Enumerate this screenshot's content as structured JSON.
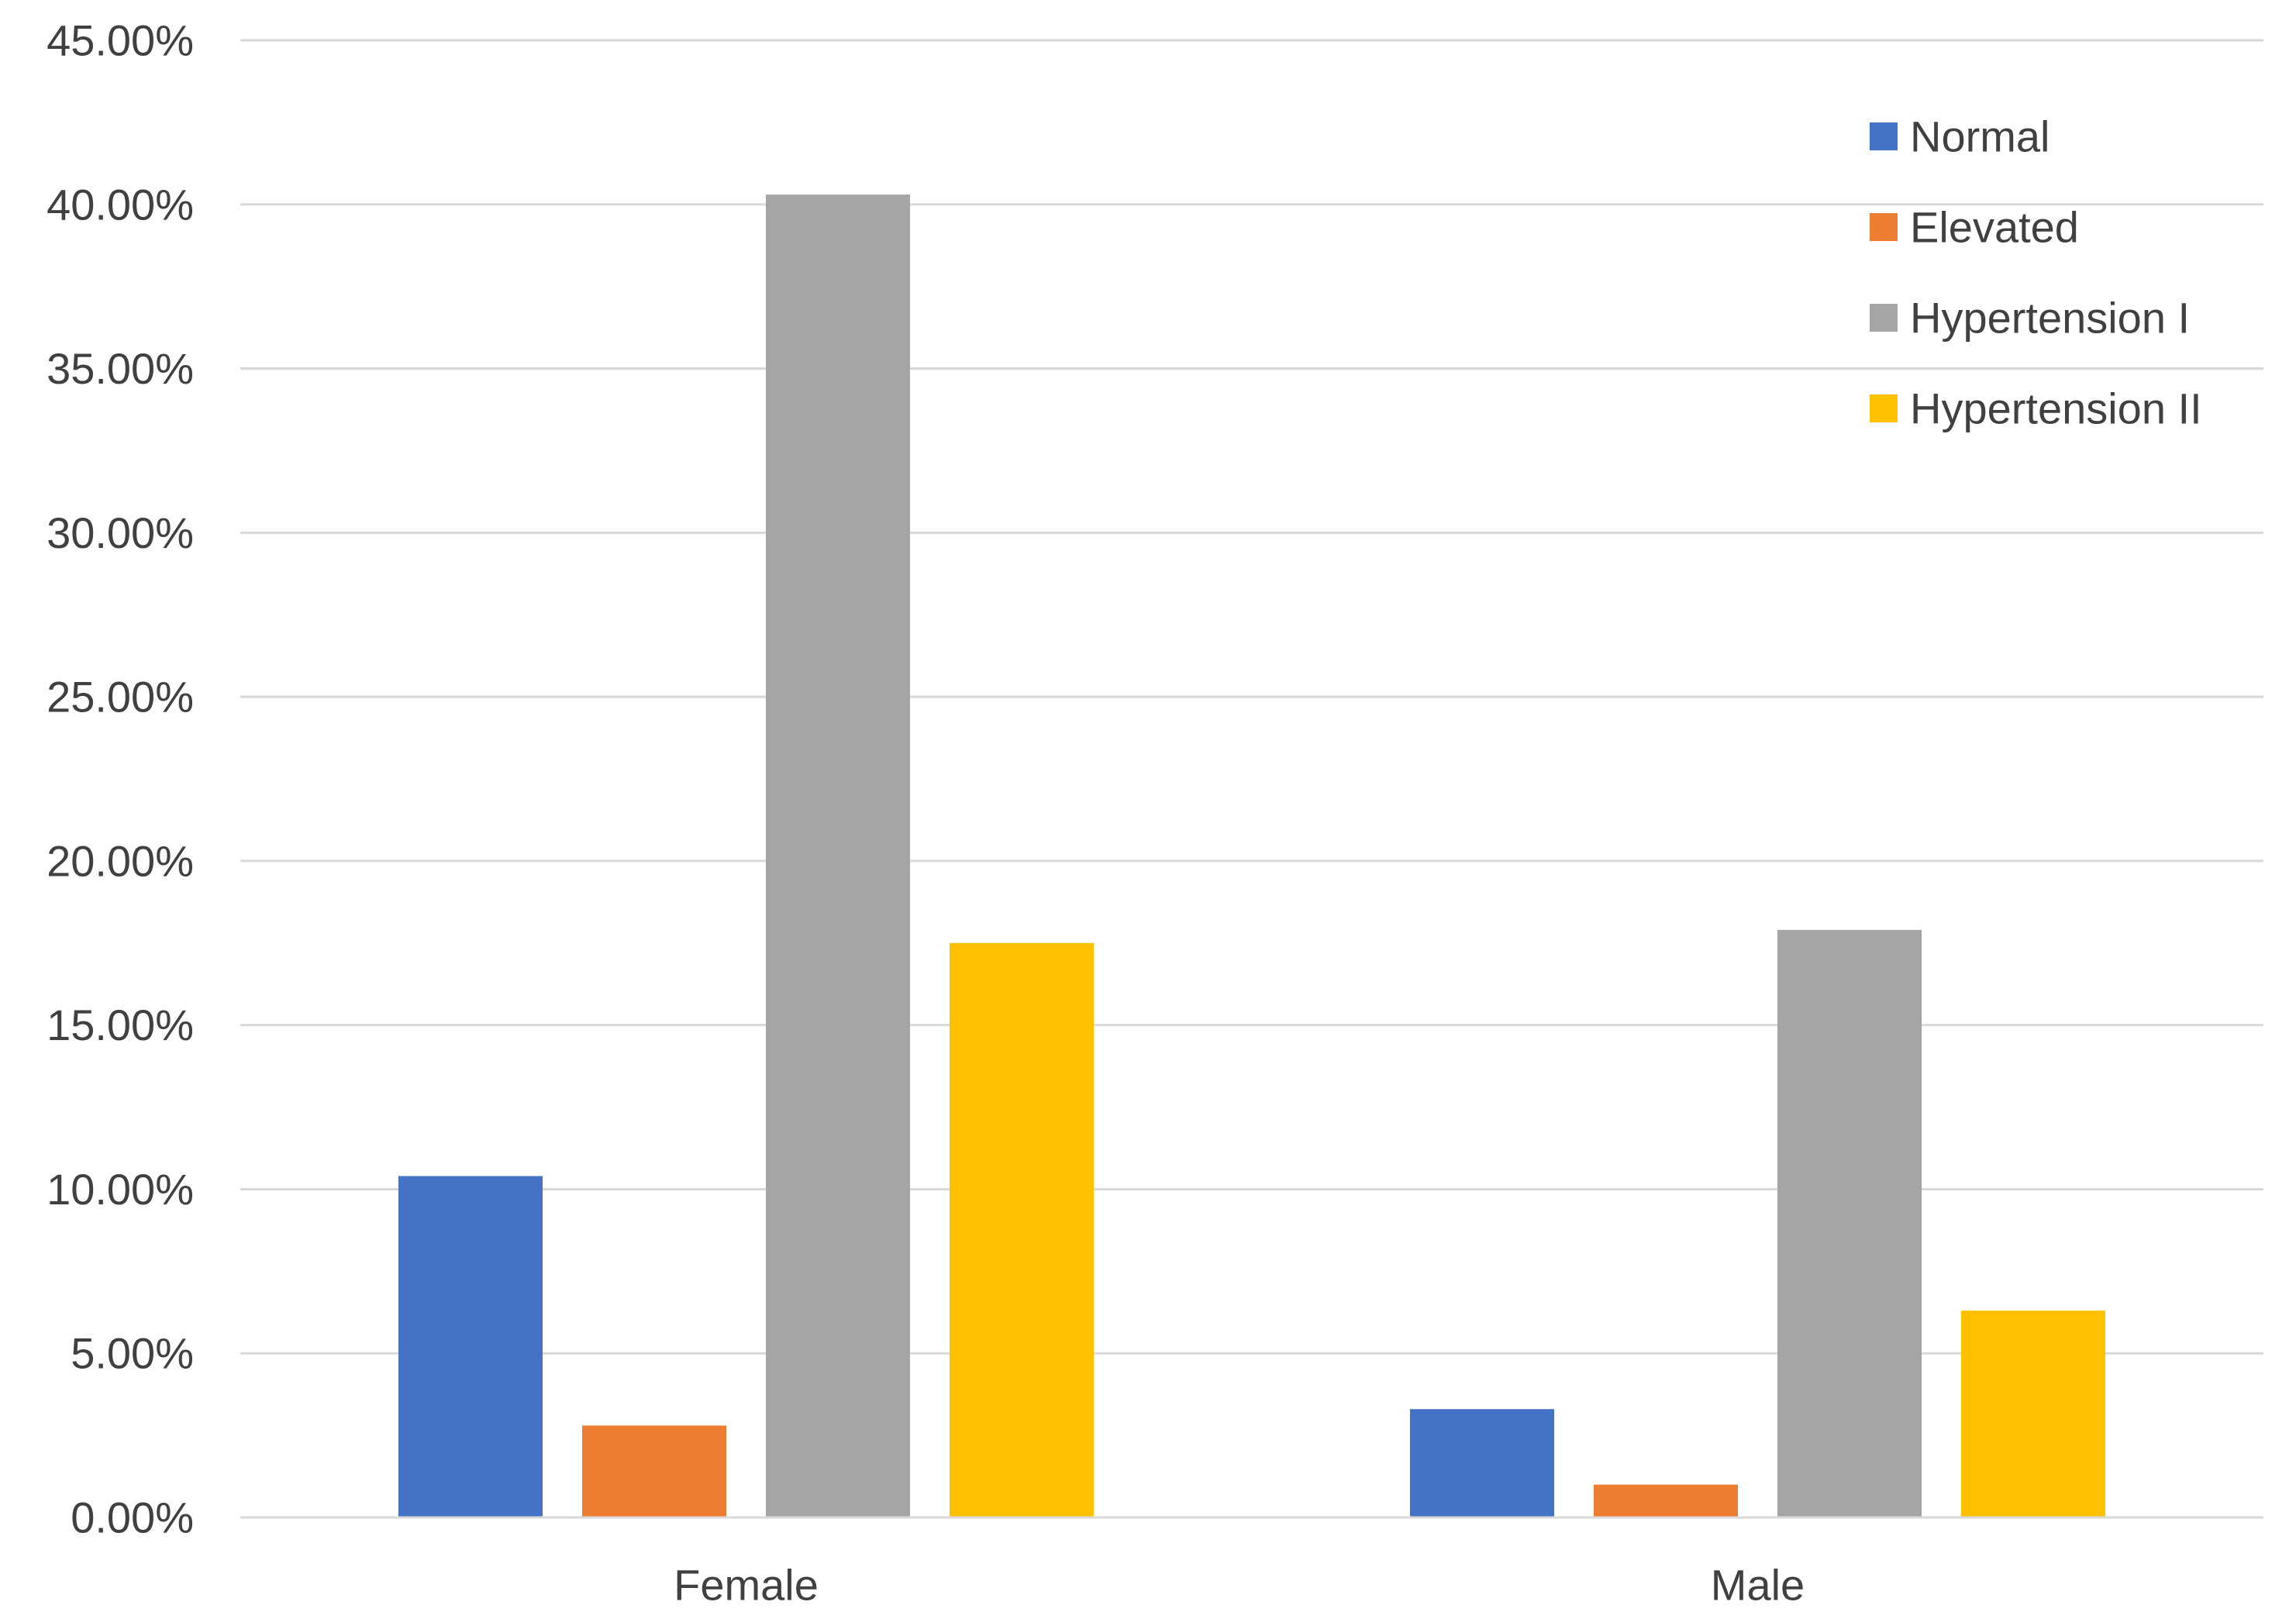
{
  "chart_data": {
    "type": "bar",
    "title": "",
    "xlabel": "",
    "ylabel": "",
    "categories": [
      "Female",
      "Male"
    ],
    "series": [
      {
        "name": "Normal",
        "color": "#4472C4",
        "values": [
          10.4,
          3.3
        ]
      },
      {
        "name": "Elevated",
        "color": "#ED7D31",
        "values": [
          2.8,
          1.0
        ]
      },
      {
        "name": "Hypertension I",
        "color": "#A5A5A5",
        "values": [
          40.3,
          17.9
        ]
      },
      {
        "name": "Hypertension II",
        "color": "#FFC000",
        "values": [
          17.5,
          6.3
        ]
      }
    ],
    "ylim": [
      0,
      45
    ],
    "yticks": [
      "0.00%",
      "5.00%",
      "10.00%",
      "15.00%",
      "20.00%",
      "25.00%",
      "30.00%",
      "35.00%",
      "40.00%",
      "45.00%"
    ],
    "grid": true,
    "legend_position": "top-right"
  }
}
